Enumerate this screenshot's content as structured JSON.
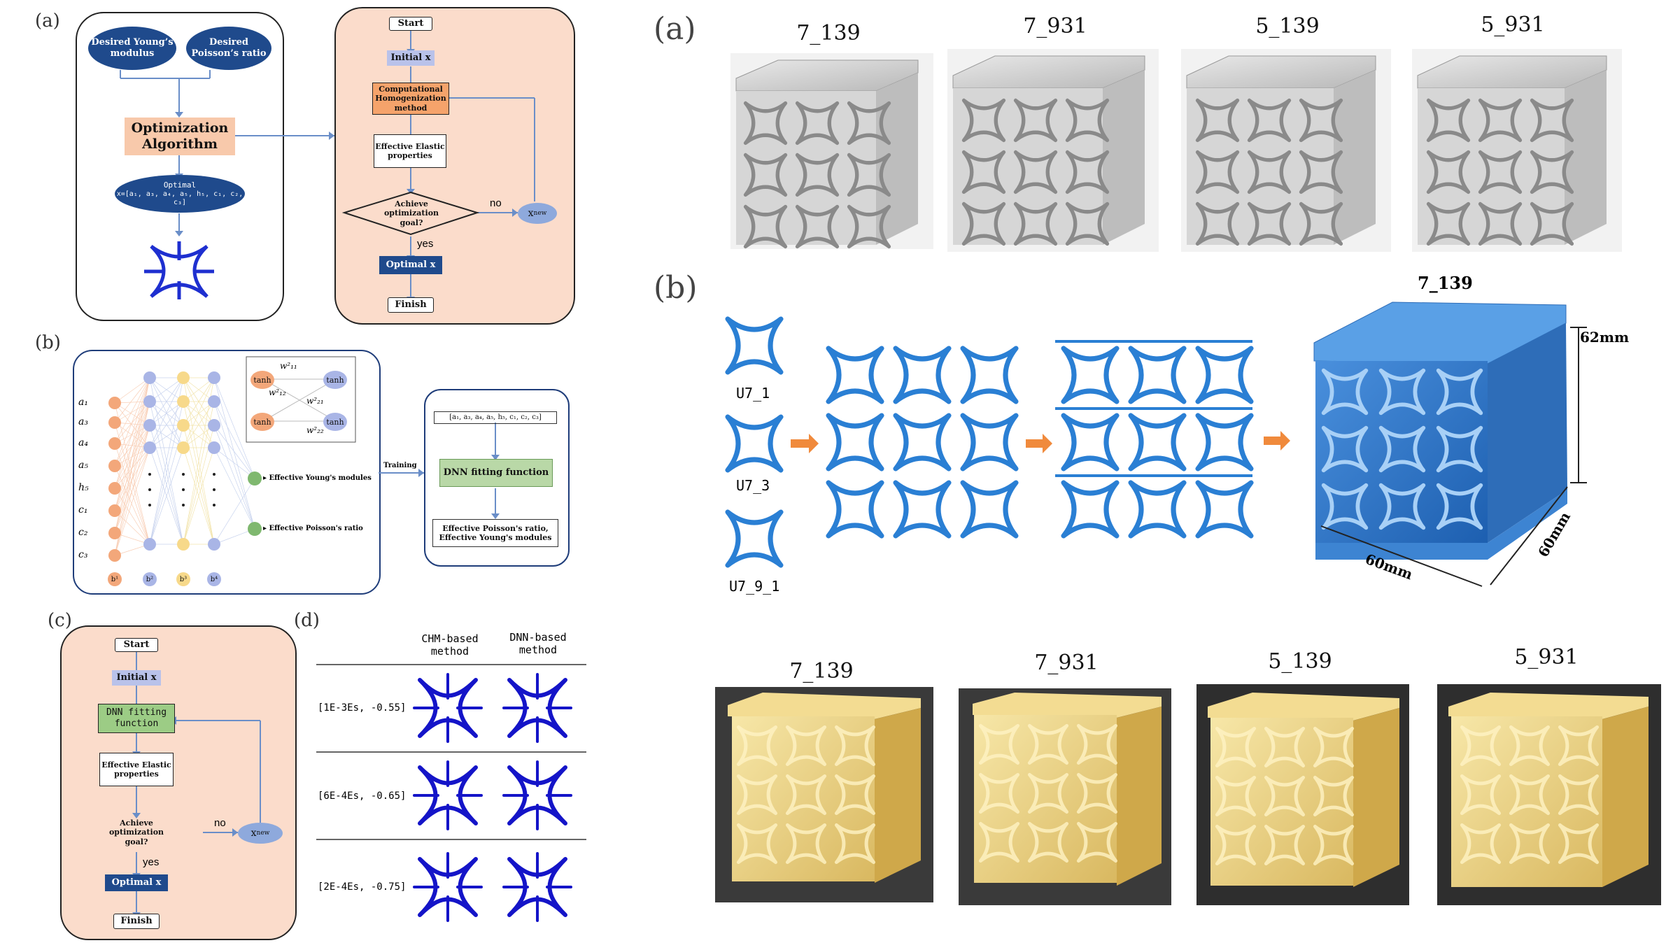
{
  "left": {
    "labels": {
      "a": "(a)",
      "b": "(b)",
      "c": "(c)",
      "d": "(d)"
    },
    "panel_a": {
      "desired_young": "Desired Young’s modulus",
      "desired_poisson": "Desired Poisson’s ratio",
      "optimization": "Optimization Algorithm",
      "optimal_title": "Optimal",
      "optimal_vector": "x=[a₁, a₃, a₄, a₅, h₅, c₁, c₂, c₃]",
      "start": "Start",
      "initial": "Initial x",
      "chm": "Computational Homogenization method",
      "effective": "Effective Elastic properties",
      "achieve": "Achieve optimization goal?",
      "no": "no",
      "yes": "yes",
      "xnew": "x",
      "xnew_sub": "new",
      "optimal_x": "Optimal x",
      "finish": "Finish"
    },
    "panel_b": {
      "inputs": [
        "a₁",
        "a₃",
        "a₄",
        "a₅",
        "h₅",
        "c₁",
        "c₂",
        "c₃"
      ],
      "biases": [
        "b¹",
        "b²",
        "b³",
        "b⁴"
      ],
      "tanh": "tanh",
      "weights": [
        "w²₁₁",
        "w²₁₂",
        "w²₂₁",
        "w²₂₂"
      ],
      "out_young": "Effective Young's modules",
      "out_poisson": "Effective Poisson's ratio",
      "training": "Training",
      "vector": "[a₁, a₃, a₄, a₅, h₅, c₁, c₂, c₃]",
      "dnn": "DNN fitting function",
      "result": "Effective Poisson's ratio, Effective Young's modules"
    },
    "panel_c": {
      "start": "Start",
      "initial": "Initial x",
      "dnn": "DNN fitting function",
      "effective": "Effective Elastic properties",
      "achieve": "Achieve optimization goal?",
      "no": "no",
      "yes": "yes",
      "xnew": "x",
      "xnew_sub": "new",
      "optimal_x": "Optimal x",
      "finish": "Finish"
    },
    "panel_d": {
      "col1": "CHM-based method",
      "col2": "DNN-based method",
      "rows": [
        "[1E-3Es, -0.55]",
        "[6E-4Es, -0.65]",
        "[2E-4Es, -0.75]"
      ]
    }
  },
  "right": {
    "label_a": "(a)",
    "label_b": "(b)",
    "renders_a": [
      "7_139",
      "7_931",
      "5_139",
      "5_931"
    ],
    "units": [
      "U7_1",
      "U7_3",
      "U7_9_1"
    ],
    "model_label": "7_139",
    "dims": {
      "height": "62mm",
      "width": "60mm",
      "depth": "60mm"
    },
    "photos": [
      "7_139",
      "7_931",
      "5_139",
      "5_931"
    ]
  }
}
